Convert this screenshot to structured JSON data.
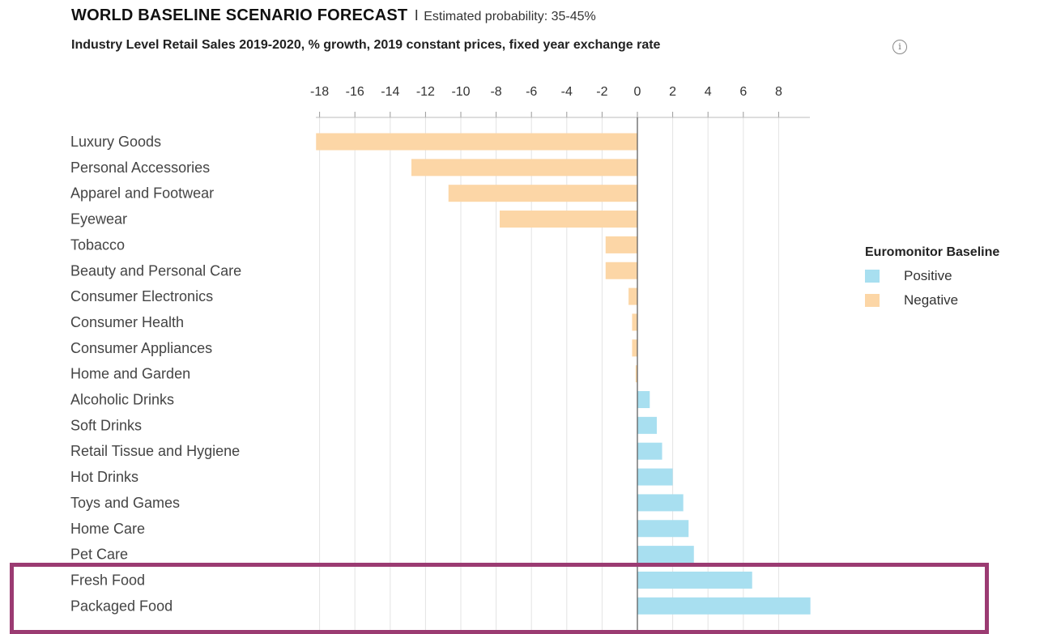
{
  "header": {
    "title": "WORLD BASELINE SCENARIO FORECAST",
    "separator": "I",
    "probability": "Estimated probability: 35-45%",
    "subtitle": "Industry Level Retail Sales 2019-2020, % growth, 2019 constant prices, fixed year exchange rate",
    "info_icon": "info-icon"
  },
  "legend": {
    "title": "Euromonitor Baseline",
    "items": [
      {
        "label": "Positive",
        "color": "#a8dff0"
      },
      {
        "label": "Negative",
        "color": "#fcd6a6"
      }
    ]
  },
  "highlight": {
    "color": "#9b3b72",
    "categories": [
      "Fresh Food",
      "Packaged Food"
    ]
  },
  "chart_data": {
    "type": "bar",
    "orientation": "horizontal",
    "title": "WORLD BASELINE SCENARIO FORECAST",
    "subtitle": "Industry Level Retail Sales 2019-2020, % growth, 2019 constant prices, fixed year exchange rate",
    "categories": [
      "Luxury Goods",
      "Personal Accessories",
      "Apparel and Footwear",
      "Eyewear",
      "Tobacco",
      "Beauty and Personal Care",
      "Consumer Electronics",
      "Consumer Health",
      "Consumer Appliances",
      "Home and Garden",
      "Alcoholic Drinks",
      "Soft Drinks",
      "Retail Tissue and Hygiene",
      "Hot Drinks",
      "Toys and Games",
      "Home Care",
      "Pet Care",
      "Fresh Food",
      "Packaged Food"
    ],
    "values": [
      -18.2,
      -12.8,
      -10.7,
      -7.8,
      -1.8,
      -1.8,
      -0.5,
      -0.3,
      -0.3,
      -0.1,
      0.7,
      1.1,
      1.4,
      2.0,
      2.6,
      2.9,
      3.2,
      6.5,
      9.8
    ],
    "xlim": [
      -18,
      10
    ],
    "xticks": [
      -18,
      -16,
      -14,
      -12,
      -10,
      -8,
      -6,
      -4,
      -2,
      0,
      2,
      4,
      6,
      8
    ],
    "positive_color": "#a8dff0",
    "negative_color": "#fcd6a6",
    "grid": true,
    "xaxis_position": "top",
    "legend_position": "right"
  }
}
